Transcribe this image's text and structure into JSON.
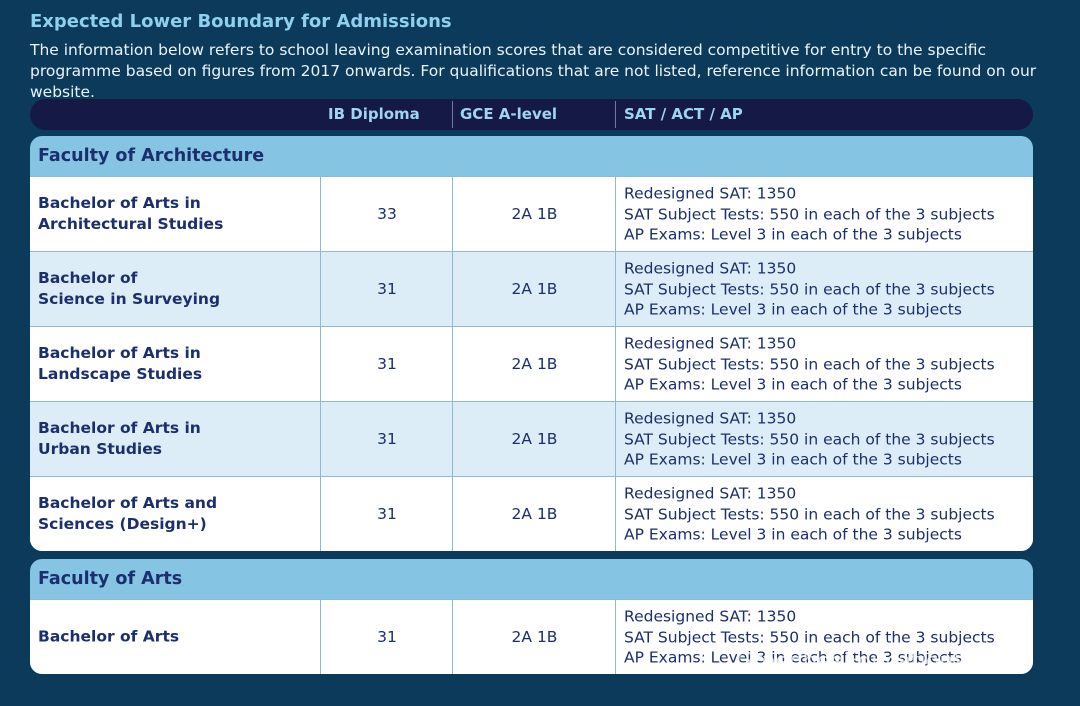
{
  "heading": "Expected Lower Boundary for Admissions",
  "intro": "The information below refers to school leaving examination scores that are considered competitive for entry to the specific programme based on figures from 2017 onwards. For qualifications that are not listed, reference information can be found on our website.",
  "columns": {
    "ib": "IB Diploma",
    "gce": "GCE A-level",
    "sat": "SAT / ACT / AP"
  },
  "faculties": [
    {
      "name": "Faculty of Architecture",
      "rows": [
        {
          "program_line1": "Bachelor of Arts in",
          "program_line2": "Architectural Studies",
          "ib": "33",
          "gce": "2A 1B",
          "req1": "Redesigned SAT: 1350",
          "req2": "SAT Subject Tests: 550 in each of the 3 subjects",
          "req3": "AP Exams: Level 3 in each of the 3 subjects"
        },
        {
          "program_line1": "Bachelor of",
          "program_line2": "Science in Surveying",
          "ib": "31",
          "gce": "2A 1B",
          "req1": "Redesigned SAT: 1350",
          "req2": "SAT Subject Tests: 550 in each of the 3 subjects",
          "req3": "AP Exams: Level 3 in each of the 3 subjects"
        },
        {
          "program_line1": "Bachelor of Arts in",
          "program_line2": "Landscape Studies",
          "ib": "31",
          "gce": "2A 1B",
          "req1": "Redesigned SAT: 1350",
          "req2": "SAT Subject Tests: 550 in each of the 3 subjects",
          "req3": "AP Exams: Level 3 in each of the 3 subjects"
        },
        {
          "program_line1": "Bachelor of Arts in",
          "program_line2": "Urban Studies",
          "ib": "31",
          "gce": "2A 1B",
          "req1": "Redesigned SAT: 1350",
          "req2": "SAT Subject Tests: 550 in each of the 3 subjects",
          "req3": "AP Exams: Level 3 in each of the 3 subjects"
        },
        {
          "program_line1": "Bachelor of Arts and",
          "program_line2": "Sciences (Design+)",
          "ib": "31",
          "gce": "2A 1B",
          "req1": "Redesigned SAT: 1350",
          "req2": "SAT Subject Tests: 550 in each of the 3 subjects",
          "req3": "AP Exams: Level 3 in each of the 3 subjects"
        }
      ]
    },
    {
      "name": "Faculty of Arts",
      "rows": [
        {
          "program_line1": "Bachelor of Arts",
          "program_line2": "",
          "ib": "31",
          "gce": "2A 1B",
          "req1": "Redesigned SAT: 1350",
          "req2": "SAT Subject Tests: 550 in each of the 3 subjects",
          "req3": "AP Exams: Level 3 in each of the 3 subjects"
        }
      ]
    }
  ],
  "watermark": "GreenbeeEducation留学"
}
